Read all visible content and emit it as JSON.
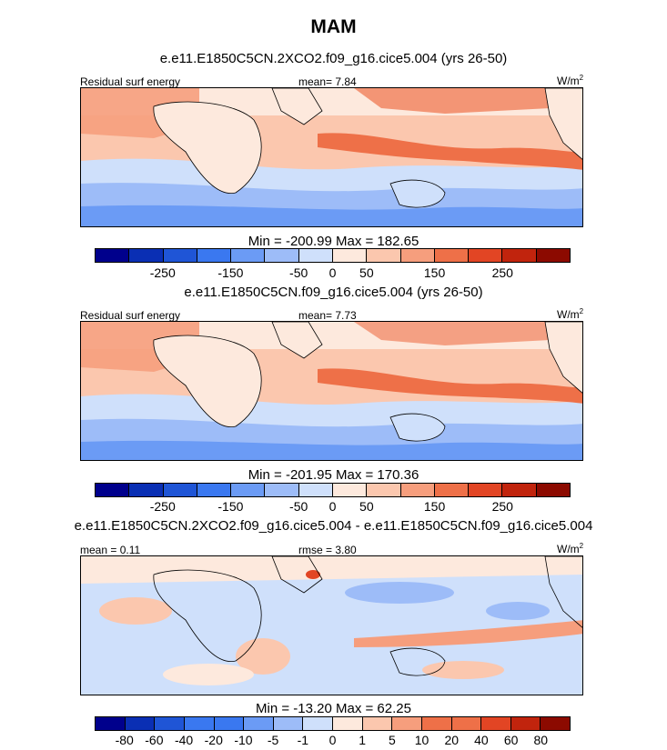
{
  "title": "MAM",
  "panels": [
    {
      "subtitle": "e.e11.E1850C5CN.2XCO2.f09_g16.cice5.004 (yrs 26-50)",
      "left_label": "Residual surf energy",
      "center_label": "mean=   7.84",
      "units": "W/m",
      "units_sup": "2",
      "minmax": "Min = -200.99 Max = 182.65"
    },
    {
      "subtitle": "e.e11.E1850C5CN.f09_g16.cice5.004 (yrs 26-50)",
      "left_label": "Residual surf energy",
      "center_label": "mean=   7.73",
      "units": "W/m",
      "units_sup": "2",
      "minmax": "Min = -201.95 Max = 170.36"
    },
    {
      "subtitle": "e.e11.E1850C5CN.2XCO2.f09_g16.cice5.004 - e.e11.E1850C5CN.f09_g16.cice5.004",
      "left_label": "mean =   0.11",
      "center_label": "rmse =   3.80",
      "units": "W/m",
      "units_sup": "2",
      "minmax": "Min = -13.20 Max = 62.25"
    }
  ],
  "colorbar_abs": {
    "colors": [
      "#00008c",
      "#0a2fb4",
      "#1f55d6",
      "#3a78f0",
      "#6b9bf5",
      "#9dbcf8",
      "#cfe0fb",
      "#fde9dd",
      "#fbc7ae",
      "#f69e7d",
      "#ee7048",
      "#e24524",
      "#c1240d",
      "#8c0a00"
    ],
    "ticks": [
      "-250",
      "-150",
      "-50",
      "0",
      "50",
      "150",
      "250"
    ]
  },
  "colorbar_diff": {
    "colors": [
      "#00008c",
      "#0a2fb4",
      "#1f55d6",
      "#3a78f0",
      "#6b9bf5",
      "#9dbcf8",
      "#cfe0fb",
      "#fde9dd",
      "#fbc7ae",
      "#f69e7d",
      "#ee7048",
      "#e24524",
      "#c1240d",
      "#8c0a00"
    ],
    "ticks": [
      "-80",
      "-60",
      "-40",
      "-20",
      "-10",
      "-5",
      "-1",
      "0",
      "1",
      "5",
      "10",
      "20",
      "40",
      "60",
      "80"
    ]
  }
}
